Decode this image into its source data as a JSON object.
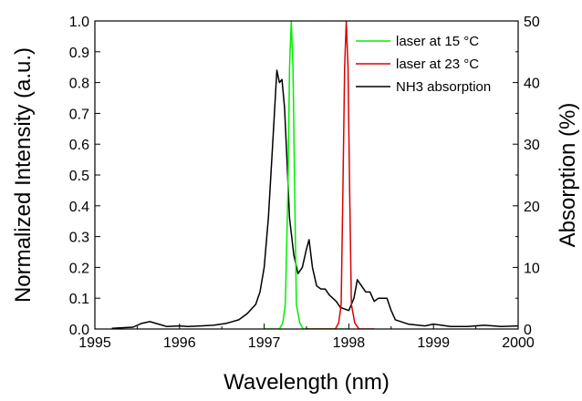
{
  "chart_data": {
    "type": "line",
    "title": "",
    "xlabel": "Wavelength (nm)",
    "ylabel": "Normalized Intensity (a.u.)",
    "ylabel_right": "Absorption (%)",
    "xlim": [
      1995,
      2000
    ],
    "ylim": [
      0,
      1.0
    ],
    "ylim_right": [
      0,
      50
    ],
    "x_ticks": [
      1995,
      1996,
      1997,
      1998,
      1999,
      2000
    ],
    "x_tick_labels": [
      "1995",
      "1996",
      "1997",
      "1998",
      "1999",
      "2000"
    ],
    "y_ticks": [
      0,
      0.1,
      0.2,
      0.3,
      0.4,
      0.5,
      0.6,
      0.7,
      0.8,
      0.9,
      1.0
    ],
    "y_tick_labels": [
      "0.0",
      "0.1",
      "0.2",
      "0.3",
      "0.4",
      "0.5",
      "0.6",
      "0.7",
      "0.8",
      "0.9",
      "1.0"
    ],
    "y_right_ticks": [
      0,
      10,
      20,
      30,
      40,
      50
    ],
    "y_right_tick_labels": [
      "0",
      "10",
      "20",
      "30",
      "40",
      "50"
    ],
    "grid": false,
    "legend_position": "top-right",
    "series": [
      {
        "name": "laser at 15 °C",
        "color": "#00ee00",
        "axis": "left",
        "x": [
          1997.0,
          1997.18,
          1997.22,
          1997.25,
          1997.28,
          1997.3,
          1997.32,
          1997.34,
          1997.36,
          1997.38,
          1997.42,
          1997.46,
          1997.55,
          1998.0
        ],
        "y": [
          0.0,
          0.0,
          0.02,
          0.08,
          0.45,
          0.85,
          1.0,
          0.85,
          0.45,
          0.08,
          0.02,
          0.0,
          0.0,
          0.0
        ]
      },
      {
        "name": "laser at 23 °C",
        "color": "#dd0000",
        "axis": "left",
        "x": [
          1997.5,
          1997.84,
          1997.88,
          1997.91,
          1997.93,
          1997.95,
          1997.97,
          1997.99,
          1998.01,
          1998.03,
          1998.07,
          1998.12,
          1998.3
        ],
        "y": [
          0.0,
          0.0,
          0.02,
          0.08,
          0.45,
          0.85,
          1.0,
          0.85,
          0.45,
          0.08,
          0.02,
          0.0,
          0.0
        ]
      },
      {
        "name": "NH3 absorption",
        "color": "#000000",
        "axis": "right",
        "x": [
          1995.2,
          1995.45,
          1995.55,
          1995.65,
          1995.75,
          1995.85,
          1996.0,
          1996.1,
          1996.25,
          1996.4,
          1996.55,
          1996.7,
          1996.8,
          1996.9,
          1996.95,
          1997.0,
          1997.05,
          1997.1,
          1997.15,
          1997.18,
          1997.21,
          1997.24,
          1997.27,
          1997.3,
          1997.35,
          1997.4,
          1997.45,
          1997.5,
          1997.53,
          1997.57,
          1997.62,
          1997.67,
          1997.72,
          1997.77,
          1997.85,
          1997.9,
          1998.0,
          1998.06,
          1998.1,
          1998.15,
          1998.2,
          1998.25,
          1998.3,
          1998.35,
          1998.4,
          1998.45,
          1998.5,
          1998.55,
          1998.7,
          1998.9,
          1999.0,
          1999.2,
          1999.4,
          1999.6,
          1999.8,
          2000.0
        ],
        "y": [
          0.1,
          0.3,
          0.9,
          1.2,
          0.8,
          0.4,
          0.5,
          0.4,
          0.5,
          0.6,
          0.9,
          1.5,
          2.5,
          4.0,
          6.0,
          10.0,
          18.0,
          30.0,
          42.0,
          40.0,
          40.5,
          36.0,
          27.0,
          18.0,
          12.0,
          9.0,
          10.0,
          13.0,
          14.5,
          10.0,
          7.0,
          6.5,
          6.5,
          5.5,
          4.5,
          3.5,
          3.0,
          5.0,
          8.0,
          7.0,
          6.0,
          6.0,
          4.5,
          5.0,
          5.0,
          5.0,
          3.0,
          1.5,
          0.8,
          0.5,
          0.8,
          0.4,
          0.4,
          0.6,
          0.4,
          0.5
        ]
      }
    ]
  }
}
